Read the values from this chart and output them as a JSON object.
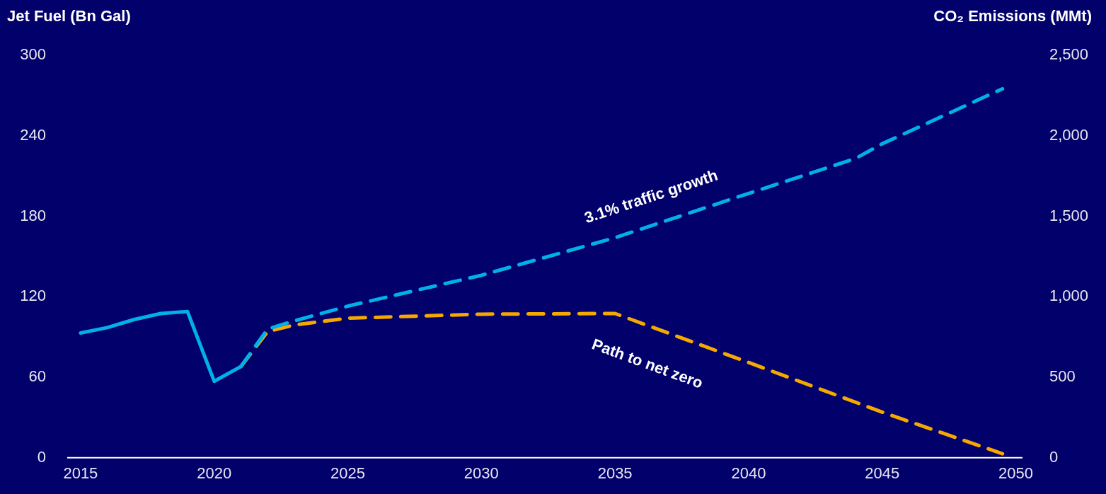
{
  "chart_data": {
    "type": "line",
    "ylabel": "Jet Fuel (Bn Gal)",
    "y2label": "CO₂ Emissions (MMt)",
    "xlim": [
      2014.5,
      2050.25
    ],
    "xticks": [
      2015,
      2020,
      2025,
      2030,
      2035,
      2040,
      2045,
      2050
    ],
    "ylim": [
      0,
      300
    ],
    "yticks": [
      0,
      60,
      120,
      180,
      240,
      300
    ],
    "y2lim": [
      0,
      2500
    ],
    "y2ticks": [
      {
        "value": 0,
        "label": "0"
      },
      {
        "value": 500,
        "label": "500"
      },
      {
        "value": 1000,
        "label": "1,000"
      },
      {
        "value": 1500,
        "label": "1,500"
      },
      {
        "value": 2000,
        "label": "2,000"
      },
      {
        "value": 2500,
        "label": "2,500"
      }
    ],
    "grid": false,
    "legend": false,
    "marker": "none",
    "series": [
      {
        "color": "#00b0e8",
        "line_style": "solid",
        "x": [
          2015,
          2016,
          2017,
          2018,
          2019,
          2020,
          2021
        ],
        "values": [
          93,
          97,
          103,
          107.5,
          109,
          57,
          68
        ]
      },
      {
        "name": "3.1% traffic growth",
        "color": "#00b0e8",
        "line_style": "dashed",
        "x": [
          2021,
          2022,
          2023,
          2025,
          2030,
          2035,
          2040,
          2044,
          2045,
          2049.5
        ],
        "values": [
          68,
          96,
          102,
          113,
          136,
          164,
          197,
          223,
          234,
          275
        ]
      },
      {
        "name": "Path to net zero",
        "color": "#f5a800",
        "line_style": "dashed",
        "x": [
          2021,
          2022,
          2023,
          2025,
          2030,
          2035,
          2040,
          2045,
          2049.5
        ],
        "values": [
          68,
          94,
          99,
          104,
          107,
          107.5,
          71,
          34,
          3
        ]
      }
    ]
  }
}
